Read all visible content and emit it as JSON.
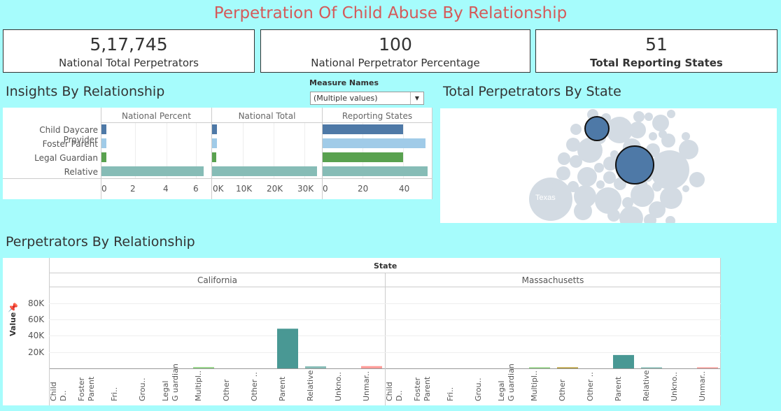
{
  "title": "Perpetration Of Child Abuse By Relationship",
  "kpis": [
    {
      "value": "5,17,745",
      "label": "National Total Perpetrators"
    },
    {
      "value": "100",
      "label": "National Perpetrator Percentage"
    },
    {
      "value": "51",
      "label": "Total Reporting States"
    }
  ],
  "insights": {
    "heading": "Insights By Relationship",
    "columns": [
      "National Percent",
      "National Total",
      "Reporting States"
    ],
    "rows": [
      "Child Daycare Provider",
      "Foster Parent",
      "Legal Guardian",
      "Relative"
    ],
    "colors": [
      "#4e79a7",
      "#a0cbe8",
      "#59a14f",
      "#86bcb6"
    ],
    "national_percent": [
      0.3,
      0.3,
      0.3,
      6.7
    ],
    "national_total": [
      1700,
      1500,
      1300,
      34500
    ],
    "reporting_states": [
      40,
      51,
      40,
      52
    ],
    "ticks": {
      "percent": [
        "0",
        "2",
        "4",
        "6"
      ],
      "total": [
        "0K",
        "10K",
        "20K",
        "30K"
      ],
      "states": [
        "0",
        "20",
        "40"
      ]
    }
  },
  "measure_filter": {
    "label": "Measure Names",
    "value": "(Multiple values)"
  },
  "state_bubbles": {
    "heading": "Total Perpetrators By State",
    "label": "Texas"
  },
  "relationship_chart": {
    "heading": "Perpetrators By Relationship",
    "column_header": "State",
    "ylabel": "Value",
    "yticks": [
      "80K",
      "60K",
      "40K",
      "20K"
    ],
    "panels": [
      "California",
      "Massachusetts"
    ],
    "categories": [
      "Child D..",
      "Foster Parent",
      "Fri..",
      "Grou..",
      "Legal G uardian",
      "Multipl..",
      "Other",
      "Other ..",
      "Parent",
      "Relative",
      "Unkno..",
      "Unmar.."
    ]
  },
  "chart_data": {
    "type": "bar",
    "title": "Perpetrators By Relationship",
    "ylabel": "Value",
    "ylim": [
      0,
      90000
    ],
    "categories": [
      "Child D..",
      "Foster Parent",
      "Fri..",
      "Grou..",
      "Legal G uardian",
      "Multipl..",
      "Other",
      "Other ..",
      "Parent",
      "Relative",
      "Unkno..",
      "Unmar.."
    ],
    "colors": [
      "#4e79a7",
      "#a0cbe8",
      "#f28e2b",
      "#ffbe7d",
      "#59a14f",
      "#8cd17d",
      "#b6992d",
      "#f1ce63",
      "#499894",
      "#86bcb6",
      "#e15759",
      "#ff9d9a"
    ],
    "series": [
      {
        "name": "California",
        "values": [
          0,
          0,
          0,
          0,
          0,
          1500,
          0,
          0,
          49000,
          2500,
          0,
          2800
        ]
      },
      {
        "name": "Massachusetts",
        "values": [
          0,
          0,
          0,
          0,
          0,
          700,
          700,
          0,
          16500,
          700,
          0,
          600
        ]
      }
    ]
  }
}
